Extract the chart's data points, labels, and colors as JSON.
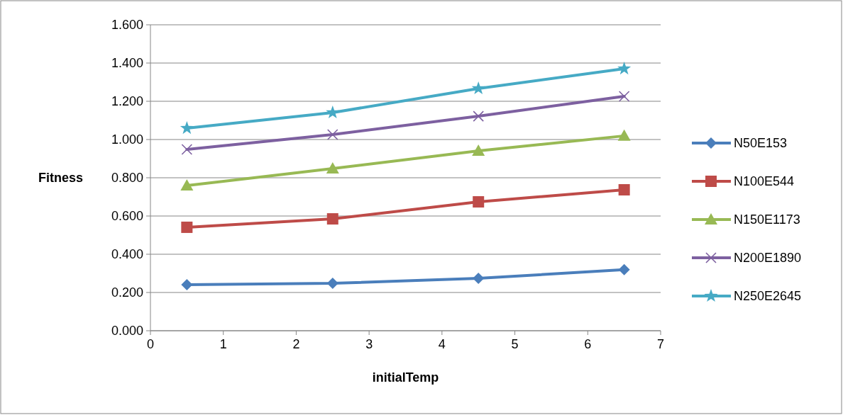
{
  "chart_data": {
    "type": "line",
    "xlabel": "initialTemp",
    "ylabel": "Fitness",
    "x": [
      0.5,
      2.5,
      4.5,
      6.5
    ],
    "xlim": [
      0,
      7
    ],
    "xticks": [
      0,
      1,
      2,
      3,
      4,
      5,
      6,
      7
    ],
    "ylim": [
      0,
      1.6
    ],
    "yticks": [
      {
        "value": 0,
        "label": "0.000"
      },
      {
        "value": 0.2,
        "label": "0.200"
      },
      {
        "value": 0.4,
        "label": "0.400"
      },
      {
        "value": 0.6,
        "label": "0.600"
      },
      {
        "value": 0.8,
        "label": "0.800"
      },
      {
        "value": 1,
        "label": "1.000"
      },
      {
        "value": 1.2,
        "label": "1.200"
      },
      {
        "value": 1.4,
        "label": "1.400"
      },
      {
        "value": 1.6,
        "label": "1.600"
      }
    ],
    "grid": "y",
    "legend": "right",
    "line_style": "solid",
    "series": [
      {
        "name": "N50E153",
        "color": "#4a7ebb",
        "marker": "diamond",
        "values": [
          0.241,
          0.248,
          0.274,
          0.319
        ]
      },
      {
        "name": "N100E544",
        "color": "#be4b48",
        "marker": "square",
        "values": [
          0.541,
          0.585,
          0.674,
          0.737
        ]
      },
      {
        "name": "N150E1173",
        "color": "#98b954",
        "marker": "triangle",
        "values": [
          0.759,
          0.848,
          0.941,
          1.019
        ]
      },
      {
        "name": "N200E1890",
        "color": "#7d60a0",
        "marker": "cross",
        "values": [
          0.948,
          1.026,
          1.122,
          1.226
        ]
      },
      {
        "name": "N250E2645",
        "color": "#46aac5",
        "marker": "star",
        "values": [
          1.059,
          1.141,
          1.267,
          1.37
        ]
      }
    ]
  }
}
